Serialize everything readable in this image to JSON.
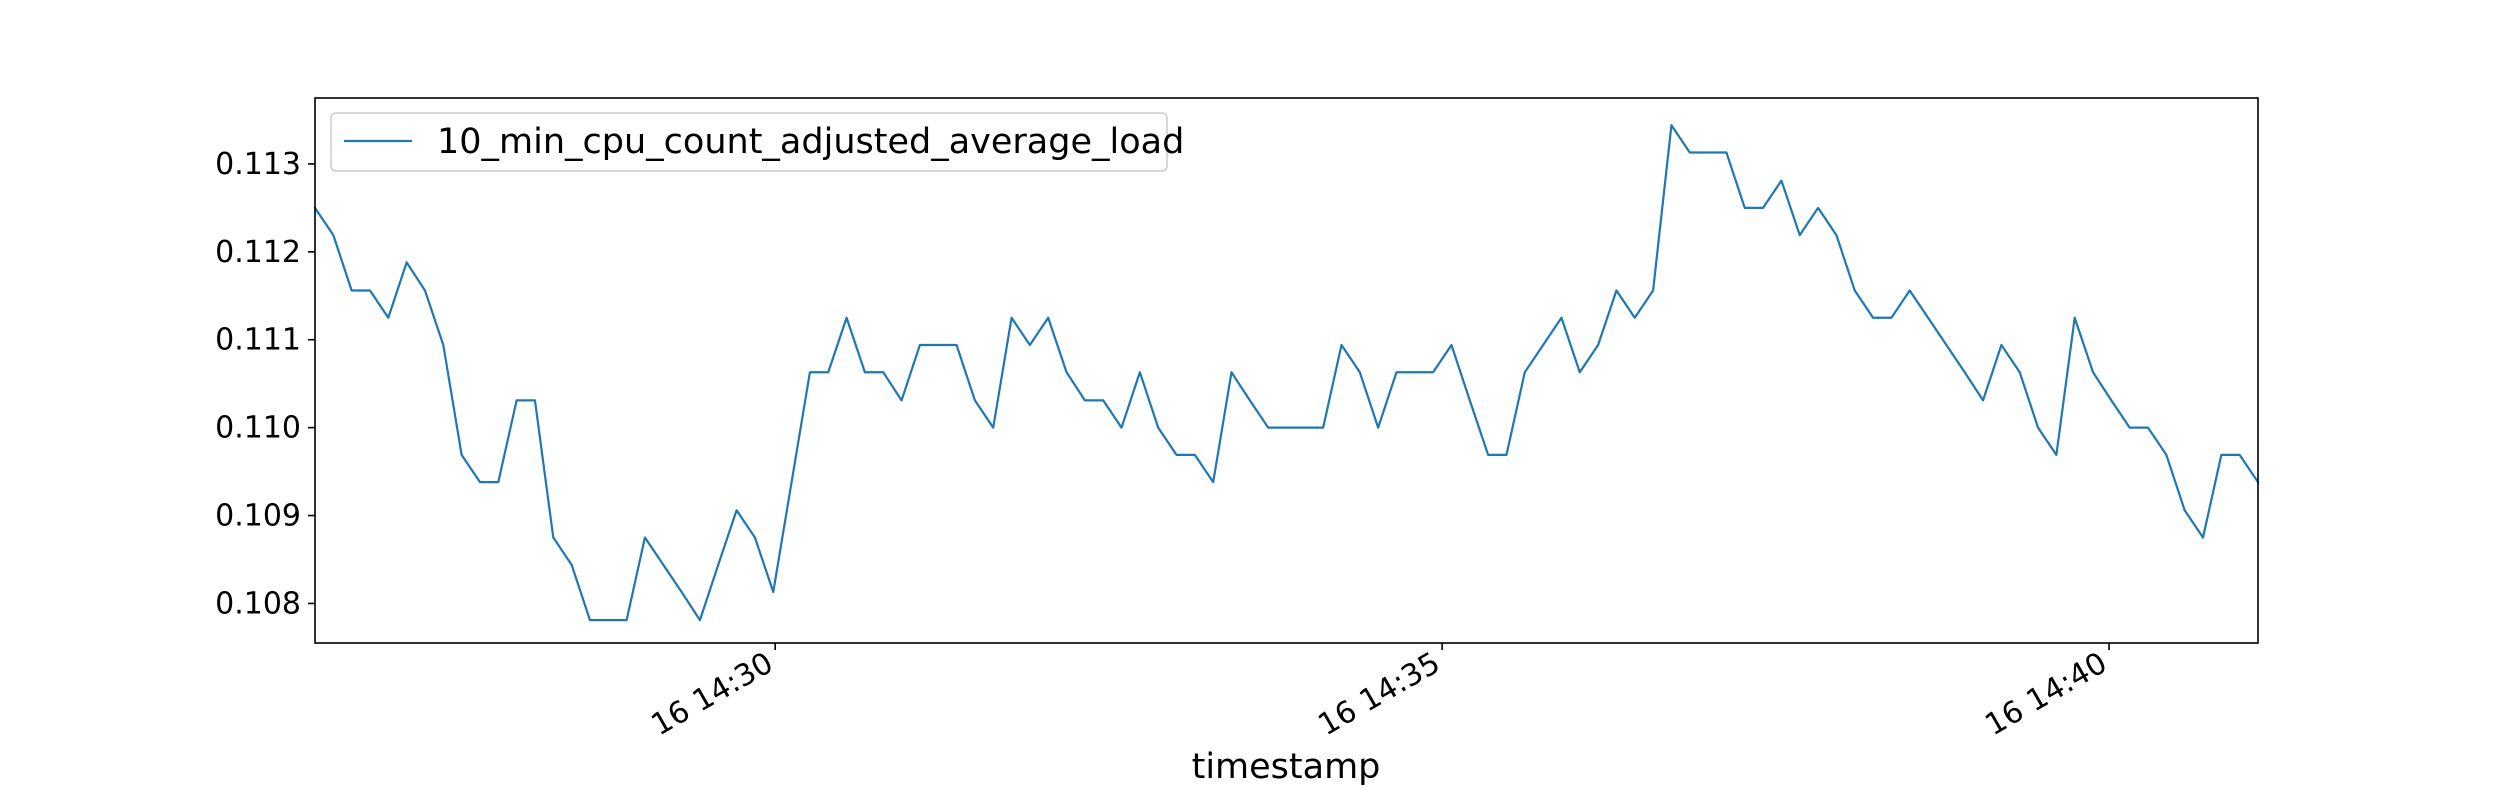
{
  "chart_data": {
    "type": "line",
    "title": "",
    "xlabel": "timestamp",
    "ylabel": "",
    "grid": false,
    "legend_position": "upper-left",
    "x_start": "2024-??-16 14:26:33",
    "x_step_seconds": 8.8,
    "xlim": [
      "16 14:26:33",
      "16 14:41:07"
    ],
    "ylim": [
      0.10755,
      0.11375
    ],
    "x_ticks": [
      "16 14:30",
      "16 14:35",
      "16 14:40"
    ],
    "y_ticks": [
      "0.108",
      "0.109",
      "0.110",
      "0.111",
      "0.112",
      "0.113"
    ],
    "series": [
      {
        "name": "10_min_cpu_count_adjusted_average_load",
        "color": "#1f77b4",
        "values": [
          0.1125,
          0.11219,
          0.11156,
          0.11156,
          0.11125,
          0.11188,
          0.11156,
          0.11094,
          0.10969,
          0.10938,
          0.10938,
          0.11031,
          0.11031,
          0.10875,
          0.10844,
          0.10781,
          0.10781,
          0.10781,
          0.10875,
          0.10844,
          0.10813,
          0.10781,
          0.10844,
          0.10906,
          0.10875,
          0.10813,
          0.10938,
          0.11063,
          0.11063,
          0.11125,
          0.11063,
          0.11063,
          0.11031,
          0.11094,
          0.11094,
          0.11094,
          0.11031,
          0.11,
          0.11125,
          0.11094,
          0.11125,
          0.11063,
          0.11031,
          0.11031,
          0.11,
          0.11063,
          0.11,
          0.10969,
          0.10969,
          0.10938,
          0.11063,
          0.11031,
          0.11,
          0.11,
          0.11,
          0.11,
          0.11094,
          0.11063,
          0.11,
          0.11063,
          0.11063,
          0.11063,
          0.11094,
          0.11031,
          0.10969,
          0.10969,
          0.11063,
          0.11094,
          0.11125,
          0.11063,
          0.11094,
          0.11156,
          0.11125,
          0.11156,
          0.11344,
          0.11313,
          0.11313,
          0.11313,
          0.1125,
          0.1125,
          0.11281,
          0.11219,
          0.1125,
          0.11219,
          0.11156,
          0.11125,
          0.11125,
          0.11156,
          0.11125,
          0.11094,
          0.11063,
          0.11031,
          0.11094,
          0.11063,
          0.11,
          0.10969,
          0.11125,
          0.11063,
          0.11031,
          0.11,
          0.11,
          0.10969,
          0.10906,
          0.10875,
          0.10969,
          0.10969,
          0.10938
        ]
      }
    ]
  }
}
